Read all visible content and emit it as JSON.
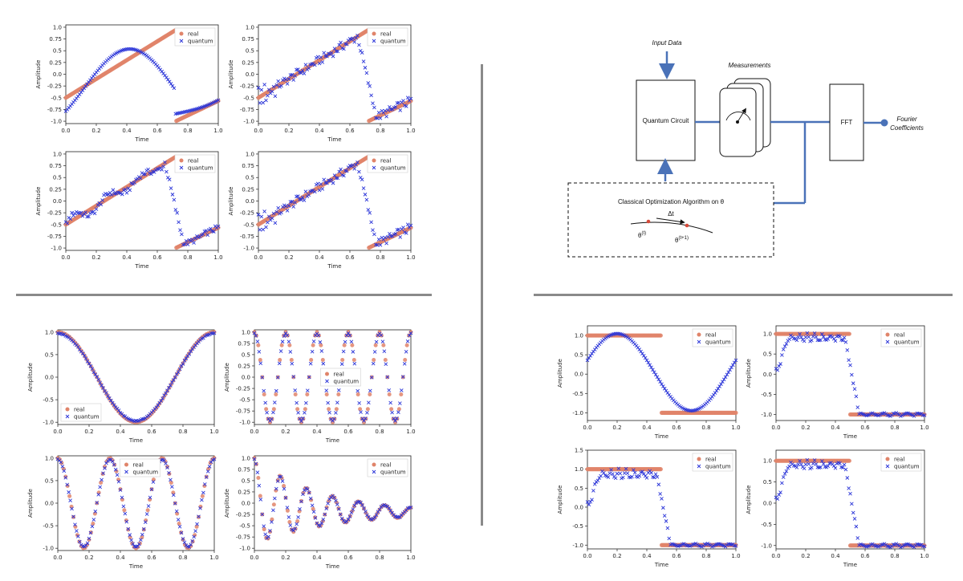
{
  "colors": {
    "real": "#e0846a",
    "quantum": "#2b35d8",
    "diagram_line": "#4a72b8"
  },
  "legend": {
    "real": "real",
    "quantum": "quantum"
  },
  "axis_text": {
    "xlabel": "Time",
    "ylabel": "Amplitude"
  },
  "diagram": {
    "input_label": "Input Data",
    "measurements_label": "Measurements",
    "circuit_label": "Quantum Circuit",
    "fft_label": "FFT",
    "output_label_1": "Fourier",
    "output_label_2": "Coefficients",
    "optimizer_label": "Classical Optimization Algorithm on θ",
    "delta_label": "Δt",
    "theta_t": "θ",
    "theta_t_sup": "(t)",
    "theta_t1": "θ",
    "theta_t1_sup": "(t+1)"
  },
  "chart_data": [
    {
      "id": "tl1",
      "type": "scatter",
      "signal": "sawtooth",
      "quantum": "smooth",
      "xlabel": "Time",
      "ylabel": "Amplitude",
      "xlim": [
        0,
        1
      ],
      "ylim": [
        -1.05,
        1.05
      ],
      "xticks": [
        0.0,
        0.2,
        0.4,
        0.6,
        0.8,
        1.0
      ],
      "yticks": [
        -1.0,
        -0.75,
        -0.5,
        -0.25,
        0.0,
        0.25,
        0.5,
        0.75,
        1.0
      ],
      "series": [
        {
          "name": "real"
        },
        {
          "name": "quantum"
        }
      ],
      "legend": "top-right"
    },
    {
      "id": "tl2",
      "type": "scatter",
      "signal": "sawtooth",
      "quantum": "noisy",
      "xlabel": "Time",
      "ylabel": "Amplitude",
      "xlim": [
        0,
        1
      ],
      "ylim": [
        -1.05,
        1.05
      ],
      "xticks": [
        0.0,
        0.2,
        0.4,
        0.6,
        0.8,
        1.0
      ],
      "yticks": [
        -1.0,
        -0.75,
        -0.5,
        -0.25,
        0.0,
        0.25,
        0.5,
        0.75,
        1.0
      ],
      "series": [
        {
          "name": "real"
        },
        {
          "name": "quantum"
        }
      ],
      "legend": "top-right"
    },
    {
      "id": "tl3",
      "type": "scatter",
      "signal": "sawtooth",
      "quantum": "wiggly",
      "xlabel": "Time",
      "ylabel": "Amplitude",
      "xlim": [
        0,
        1
      ],
      "ylim": [
        -1.05,
        1.05
      ],
      "xticks": [
        0.0,
        0.2,
        0.4,
        0.6,
        0.8,
        1.0
      ],
      "yticks": [
        -1.0,
        -0.75,
        -0.5,
        -0.25,
        0.0,
        0.25,
        0.5,
        0.75,
        1.0
      ],
      "series": [
        {
          "name": "real"
        },
        {
          "name": "quantum"
        }
      ],
      "legend": "top-right"
    },
    {
      "id": "tl4",
      "type": "scatter",
      "signal": "sawtooth",
      "quantum": "noisy2",
      "xlabel": "Time",
      "ylabel": "Amplitude",
      "xlim": [
        0,
        1
      ],
      "ylim": [
        -1.05,
        1.05
      ],
      "xticks": [
        0.0,
        0.2,
        0.4,
        0.6,
        0.8,
        1.0
      ],
      "yticks": [
        -1.0,
        -0.75,
        -0.5,
        -0.25,
        0.0,
        0.25,
        0.5,
        0.75,
        1.0
      ],
      "series": [
        {
          "name": "real"
        },
        {
          "name": "quantum"
        }
      ],
      "legend": "top-right"
    },
    {
      "id": "bl1",
      "type": "scatter",
      "signal": "cos1",
      "quantum": "close",
      "xlabel": "Time",
      "ylabel": "Amplitude",
      "xlim": [
        0,
        1
      ],
      "ylim": [
        -1.05,
        1.05
      ],
      "xticks": [
        0.0,
        0.2,
        0.4,
        0.6,
        0.8,
        1.0
      ],
      "yticks": [
        -1.0,
        -0.5,
        0.0,
        0.5,
        1.0
      ],
      "series": [
        {
          "name": "real"
        },
        {
          "name": "quantum"
        }
      ],
      "legend": "bottom-left"
    },
    {
      "id": "bl2",
      "type": "scatter",
      "signal": "cos5",
      "quantum": "close",
      "xlabel": "Time",
      "ylabel": "Amplitude",
      "xlim": [
        0,
        1
      ],
      "ylim": [
        -1.05,
        1.05
      ],
      "xticks": [
        0.0,
        0.2,
        0.4,
        0.6,
        0.8,
        1.0
      ],
      "yticks": [
        -1.0,
        -0.75,
        -0.5,
        -0.25,
        0.0,
        0.25,
        0.5,
        0.75,
        1.0
      ],
      "series": [
        {
          "name": "real"
        },
        {
          "name": "quantum"
        }
      ],
      "legend": "center"
    },
    {
      "id": "bl3",
      "type": "scatter",
      "signal": "cos3",
      "quantum": "close",
      "xlabel": "Time",
      "ylabel": "Amplitude",
      "xlim": [
        0,
        1
      ],
      "ylim": [
        -1.05,
        1.05
      ],
      "xticks": [
        0.0,
        0.2,
        0.4,
        0.6,
        0.8,
        1.0
      ],
      "yticks": [
        -1.0,
        -0.5,
        0.0,
        0.5,
        1.0
      ],
      "series": [
        {
          "name": "real"
        },
        {
          "name": "quantum"
        }
      ],
      "legend": "top-center"
    },
    {
      "id": "bl4",
      "type": "scatter",
      "signal": "damped",
      "quantum": "close",
      "xlabel": "Time",
      "ylabel": "Amplitude",
      "xlim": [
        0,
        1
      ],
      "ylim": [
        -1.05,
        1.05
      ],
      "xticks": [
        0.0,
        0.2,
        0.4,
        0.6,
        0.8,
        1.0
      ],
      "yticks": [
        -1.0,
        -0.75,
        -0.5,
        -0.25,
        0.0,
        0.25,
        0.5,
        0.75,
        1.0
      ],
      "series": [
        {
          "name": "real"
        },
        {
          "name": "quantum"
        }
      ],
      "legend": "top-right"
    },
    {
      "id": "br1",
      "type": "scatter",
      "signal": "square",
      "quantum": "smooth",
      "xlabel": "Time",
      "ylabel": "Amplitude",
      "xlim": [
        0,
        1
      ],
      "ylim": [
        -1.2,
        1.25
      ],
      "xticks": [
        0.0,
        0.2,
        0.4,
        0.6,
        0.8,
        1.0
      ],
      "yticks": [
        -1.0,
        -0.5,
        0.0,
        0.5,
        1.0
      ],
      "series": [
        {
          "name": "real"
        },
        {
          "name": "quantum"
        }
      ],
      "legend": "top-right"
    },
    {
      "id": "br2",
      "type": "scatter",
      "signal": "square",
      "quantum": "ripple",
      "xlabel": "Time",
      "ylabel": "Amplitude",
      "xlim": [
        0,
        1
      ],
      "ylim": [
        -1.15,
        1.2
      ],
      "xticks": [
        0.0,
        0.2,
        0.4,
        0.6,
        0.8,
        1.0
      ],
      "yticks": [
        -1.0,
        -0.5,
        0.0,
        0.5,
        1.0
      ],
      "series": [
        {
          "name": "real"
        },
        {
          "name": "quantum"
        }
      ],
      "legend": "top-right"
    },
    {
      "id": "br3",
      "type": "scatter",
      "signal": "square",
      "quantum": "ripple2",
      "xlabel": "Time",
      "ylabel": "Amplitude",
      "xlim": [
        0,
        1
      ],
      "ylim": [
        -1.1,
        1.5
      ],
      "xticks": [
        0.0,
        0.2,
        0.4,
        0.6,
        0.8,
        1.0
      ],
      "yticks": [
        -1.0,
        -0.5,
        0.0,
        0.5,
        1.0,
        1.5
      ],
      "series": [
        {
          "name": "real"
        },
        {
          "name": "quantum"
        }
      ],
      "legend": "top-right"
    },
    {
      "id": "br4",
      "type": "scatter",
      "signal": "square",
      "quantum": "ripple3",
      "xlabel": "Time",
      "ylabel": "Amplitude",
      "xlim": [
        0,
        1
      ],
      "ylim": [
        -1.08,
        1.25
      ],
      "xticks": [
        0.0,
        0.2,
        0.4,
        0.6,
        0.8,
        1.0
      ],
      "yticks": [
        -1.0,
        -0.5,
        0.0,
        0.5,
        1.0
      ],
      "series": [
        {
          "name": "real"
        },
        {
          "name": "quantum"
        }
      ],
      "legend": "top-right"
    }
  ]
}
